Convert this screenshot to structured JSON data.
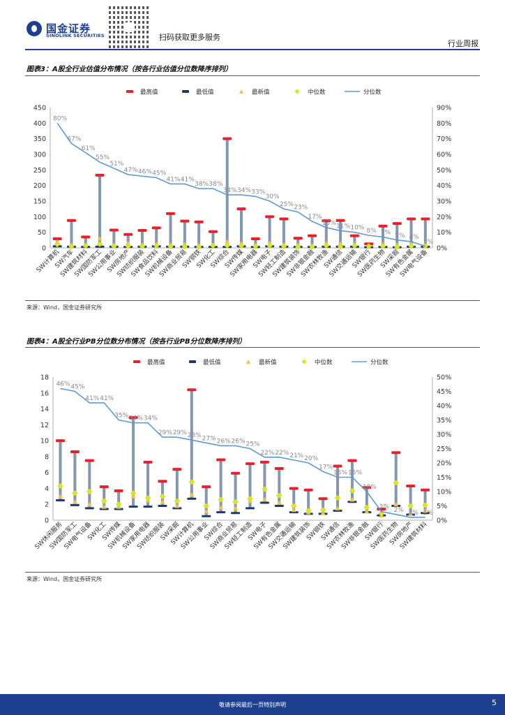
{
  "header": {
    "logo_cn": "国金证券",
    "logo_en": "SINOLINK SECURITIES",
    "scan_text": "扫码获取更多服务",
    "section": "行业周报"
  },
  "figure3": {
    "title": "图表3：A股全行业估值分布情况（按各行业估值分位数降序排列）",
    "source": "来源：Wind，国金证券研究所"
  },
  "figure4": {
    "title": "图表4：A股全行业PB分位数分布情况（按各行业PB分位数降序排列）",
    "source": "来源：Wind，国金证券研究所"
  },
  "footer": {
    "text": "敬请参阅最后一页特别声明",
    "page": "5"
  },
  "colors": {
    "max": "#e8202a",
    "min": "#1d3a70",
    "latest": "#f2c14e",
    "median": "#d8e81c",
    "percentile": "#5b9bd5",
    "range_bar": "#8497b0",
    "brand": "#1d3f8f"
  },
  "chart_data": [
    {
      "type": "line",
      "legend": [
        "最高值",
        "最低值",
        "最新值",
        "中位数",
        "分位数"
      ],
      "categories": [
        "SW计算机",
        "SW汽车",
        "SW建筑材料",
        "SW国防军工",
        "SW公用事业",
        "SW房地产",
        "SW纺织服装",
        "SW食品饮料",
        "SW机械设备",
        "SW商业贸易",
        "SW钢铁",
        "SW化工",
        "SW综合",
        "SW传媒",
        "SW家用电器",
        "SW电子",
        "SW轻工制造",
        "SW建筑装饰",
        "SW非银金融",
        "SW农林牧渔",
        "SW通信",
        "SW交通运输",
        "SW银行",
        "SW医药生物",
        "SW采掘",
        "SW有色金属",
        "SW电气设备"
      ],
      "series": [
        {
          "name": "最高值",
          "values": [
            29,
            88,
            35,
            233,
            57,
            43,
            56,
            64,
            110,
            86,
            83,
            52,
            350,
            125,
            29,
            100,
            93,
            31,
            39,
            87,
            88,
            39,
            13,
            70,
            78,
            93,
            93
          ]
        },
        {
          "name": "最低值",
          "values": [
            5,
            4,
            3,
            4,
            4,
            3,
            4,
            5,
            4,
            4,
            3,
            3,
            3,
            5,
            3,
            5,
            4,
            3,
            3,
            4,
            4,
            4,
            2,
            3,
            2,
            4,
            4
          ]
        },
        {
          "name": "最新值",
          "values": [
            20,
            10,
            8,
            30,
            10,
            15,
            10,
            12,
            10,
            12,
            9,
            10,
            20,
            15,
            10,
            15,
            11,
            10,
            8,
            14,
            14,
            12,
            5,
            12,
            10,
            12,
            14
          ]
        },
        {
          "name": "中位数",
          "values": [
            11,
            5,
            7,
            12,
            5,
            5,
            5,
            7,
            5,
            4,
            3,
            7,
            7,
            7,
            5,
            7,
            5,
            3,
            4,
            7,
            4,
            7,
            6,
            5,
            3,
            6,
            6
          ]
        },
        {
          "name": "分位数",
          "values": [
            0.8,
            0.67,
            0.61,
            0.55,
            0.51,
            0.47,
            0.46,
            0.45,
            0.41,
            0.41,
            0.38,
            0.38,
            0.34,
            0.34,
            0.33,
            0.3,
            0.25,
            0.23,
            0.17,
            0.13,
            0.11,
            0.1,
            0.08,
            0.07,
            0.05,
            0.04,
            0.01
          ]
        }
      ],
      "pct_labels": [
        "80%",
        "67%",
        "61%",
        "55%",
        "51%",
        "47%",
        "46%",
        "45%",
        "41%",
        "41%",
        "38%",
        "38%",
        "34%",
        "34%",
        "33%",
        "30%",
        "25%",
        "23%",
        "17%",
        "13%",
        "11%",
        "10%",
        "8%",
        "7%",
        "5%",
        "4%",
        "1%"
      ],
      "y_left": {
        "min": 0,
        "max": 450,
        "ticks": [
          "0",
          "50",
          "100",
          "150",
          "200",
          "250",
          "300",
          "350",
          "400",
          "450"
        ]
      },
      "y_right": {
        "min": 0,
        "max": 0.9,
        "ticks": [
          "0%",
          "10%",
          "20%",
          "30%",
          "40%",
          "50%",
          "60%",
          "70%",
          "80%",
          "90%"
        ]
      }
    },
    {
      "type": "line",
      "legend": [
        "最高值",
        "最低值",
        "最新值",
        "中位数",
        "分位数"
      ],
      "categories": [
        "SW休闲服务",
        "SW国防军工",
        "SW电气设备",
        "SW化工",
        "SW传媒",
        "SW机械设备",
        "SW家用电器",
        "SW纺织服装",
        "SW采掘",
        "SW计算机",
        "SW公用事业",
        "SW综合",
        "SW商业贸易",
        "SW轻工制造",
        "SW电子",
        "SW有色金属",
        "SW交通运输",
        "SW建筑装饰",
        "SW钢铁",
        "SW通信",
        "SW农林牧渔",
        "SW非银金融",
        "SW银行",
        "SW医药生物",
        "SW房地产",
        "SW建筑材料"
      ],
      "series": [
        {
          "name": "最高值",
          "values": [
            10,
            8.6,
            7.5,
            4.2,
            3.7,
            12.9,
            7.3,
            4.9,
            6.4,
            16.4,
            4.2,
            7.6,
            5.9,
            7.1,
            7.3,
            6.5,
            4,
            3.8,
            2.7,
            6.8,
            7.5,
            4.1,
            1.4,
            8.5,
            4.3,
            3.8
          ]
        },
        {
          "name": "最低值",
          "values": [
            2.5,
            1.9,
            1.5,
            1.4,
            1.4,
            1.7,
            1.7,
            1.8,
            1.5,
            2.7,
            0.5,
            1.0,
            0.9,
            1.5,
            2.2,
            1.8,
            1.0,
            0.8,
            0.8,
            1.2,
            2.3,
            1.0,
            0.6,
            1.8,
            0.7,
            0.9
          ]
        },
        {
          "name": "最新值",
          "values": [
            3.0,
            2.3,
            2.0,
            1.7,
            1.7,
            3.0,
            2.5,
            2.3,
            1.8,
            3.2,
            1.1,
            1.6,
            1.5,
            2.4,
            2.6,
            2.2,
            1.3,
            1.0,
            0.9,
            1.5,
            2.6,
            1.1,
            0.6,
            2.0,
            0.8,
            1.2
          ]
        },
        {
          "name": "中位数",
          "values": [
            4.3,
            3.4,
            3.6,
            2.4,
            2.0,
            3.4,
            2.8,
            3.0,
            2.4,
            4.8,
            1.8,
            2.6,
            2.3,
            2.7,
            3.9,
            3.1,
            1.8,
            1.2,
            1.3,
            2.8,
            3.7,
            1.6,
            0.8,
            4.7,
            1.8,
            1.9
          ]
        },
        {
          "name": "分位数",
          "values": [
            0.46,
            0.45,
            0.41,
            0.41,
            0.35,
            0.34,
            0.34,
            0.29,
            0.29,
            0.28,
            0.27,
            0.26,
            0.26,
            0.25,
            0.22,
            0.22,
            0.21,
            0.2,
            0.17,
            0.15,
            0.15,
            0.1,
            0.03,
            0.02,
            0.01,
            0.01
          ]
        }
      ],
      "pct_labels": [
        "46%",
        "45%",
        "41%",
        "41%",
        "35%",
        "34%",
        "34%",
        "29%",
        "29%",
        "28%",
        "27%",
        "26%",
        "26%",
        "25%",
        "22%",
        "22%",
        "21%",
        "20%",
        "17%",
        "15%",
        "15%",
        "10%",
        "3%",
        "2%",
        "1%",
        "1%"
      ],
      "y_left": {
        "min": 0,
        "max": 18,
        "ticks": [
          "0",
          "2",
          "4",
          "6",
          "8",
          "10",
          "12",
          "14",
          "16",
          "18"
        ]
      },
      "y_right": {
        "min": 0,
        "max": 0.5,
        "ticks": [
          "0%",
          "5%",
          "10%",
          "15%",
          "20%",
          "25%",
          "30%",
          "35%",
          "40%",
          "45%",
          "50%"
        ]
      }
    }
  ]
}
